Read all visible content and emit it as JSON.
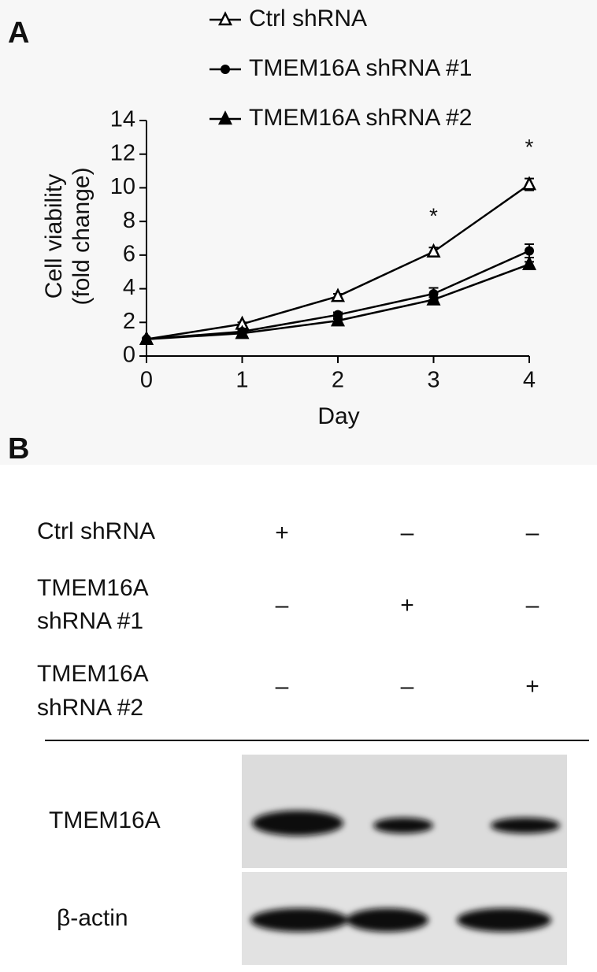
{
  "panel_labels": [
    "A",
    "B"
  ],
  "chart_data": {
    "type": "line",
    "x_label": "Day",
    "y_label": [
      "Cell viability",
      "(fold change)"
    ],
    "x": [
      0,
      1,
      2,
      3,
      4
    ],
    "xlim": [
      0,
      4
    ],
    "xticks": [
      0,
      1,
      2,
      3,
      4
    ],
    "ylim": [
      0,
      14
    ],
    "yticks": [
      0,
      2,
      4,
      6,
      8,
      10,
      12,
      14
    ],
    "legend": "top",
    "series": [
      {
        "name": "Ctrl shRNA",
        "color": "#000000",
        "marker": "open-triangle",
        "values": [
          1,
          1.9,
          3.55,
          6.2,
          10.2
        ],
        "errors": [
          0.05,
          0.1,
          0.15,
          0.25,
          0.35
        ]
      },
      {
        "name": "TMEM16A shRNA #1",
        "color": "#000000",
        "marker": "circle",
        "values": [
          1,
          1.45,
          2.45,
          3.7,
          6.25
        ],
        "errors": [
          0.05,
          0.1,
          0.15,
          0.35,
          0.4
        ]
      },
      {
        "name": "TMEM16A shRNA #2",
        "color": "#000000",
        "marker": "triangle",
        "values": [
          1,
          1.35,
          2.1,
          3.35,
          5.45
        ],
        "errors": [
          0.05,
          0.05,
          0.1,
          0.15,
          0.15
        ]
      }
    ],
    "annotations": [
      {
        "text": "*",
        "x": 3
      },
      {
        "text": "*",
        "x": 4
      }
    ]
  },
  "conditions": {
    "rows": [
      {
        "label": [
          "Ctrl shRNA"
        ],
        "signs": [
          "+",
          "–",
          "–"
        ]
      },
      {
        "label": [
          "TMEM16A",
          "shRNA #1"
        ],
        "signs": [
          "–",
          "+",
          "–"
        ]
      },
      {
        "label": [
          "TMEM16A",
          "shRNA #2"
        ],
        "signs": [
          "–",
          "–",
          "+"
        ]
      }
    ]
  },
  "blot": {
    "rows": [
      "TMEM16A",
      "β-actin"
    ]
  }
}
